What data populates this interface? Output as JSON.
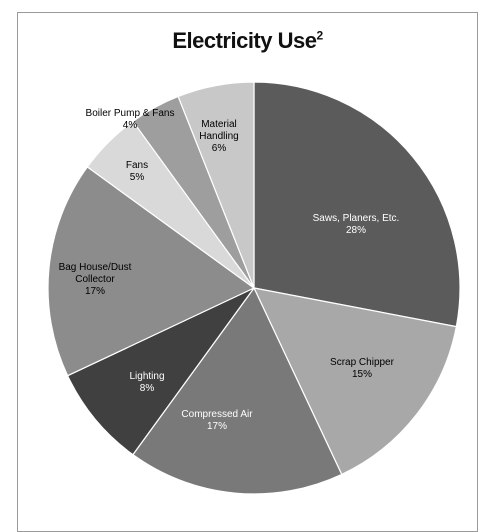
{
  "chart_data": {
    "type": "pie",
    "title": "Electricity Use",
    "title_superscript": "2",
    "slices": [
      {
        "label_lines": [
          "Saws, Planers, Etc."
        ],
        "value": 28,
        "pct_label": "28%",
        "color": "#5b5b5b",
        "text_color": "#ffffff"
      },
      {
        "label_lines": [
          "Scrap Chipper"
        ],
        "value": 15,
        "pct_label": "15%",
        "color": "#a8a8a8",
        "text_color": "#000000"
      },
      {
        "label_lines": [
          "Compressed Air"
        ],
        "value": 17,
        "pct_label": "17%",
        "color": "#797979",
        "text_color": "#ffffff"
      },
      {
        "label_lines": [
          "Lighting"
        ],
        "value": 8,
        "pct_label": "8%",
        "color": "#404040",
        "text_color": "#ffffff"
      },
      {
        "label_lines": [
          "Bag House/Dust",
          "Collector"
        ],
        "value": 17,
        "pct_label": "17%",
        "color": "#8c8c8c",
        "text_color": "#000000"
      },
      {
        "label_lines": [
          "Fans"
        ],
        "value": 5,
        "pct_label": "5%",
        "color": "#d9d9d9",
        "text_color": "#000000"
      },
      {
        "label_lines": [
          "Boiler Pump & Fans"
        ],
        "value": 4,
        "pct_label": "4%",
        "color": "#9e9e9e",
        "text_color": "#000000"
      },
      {
        "label_lines": [
          "Material",
          "Handling"
        ],
        "value": 6,
        "pct_label": "6%",
        "color": "#c8c8c8",
        "text_color": "#000000"
      }
    ]
  }
}
